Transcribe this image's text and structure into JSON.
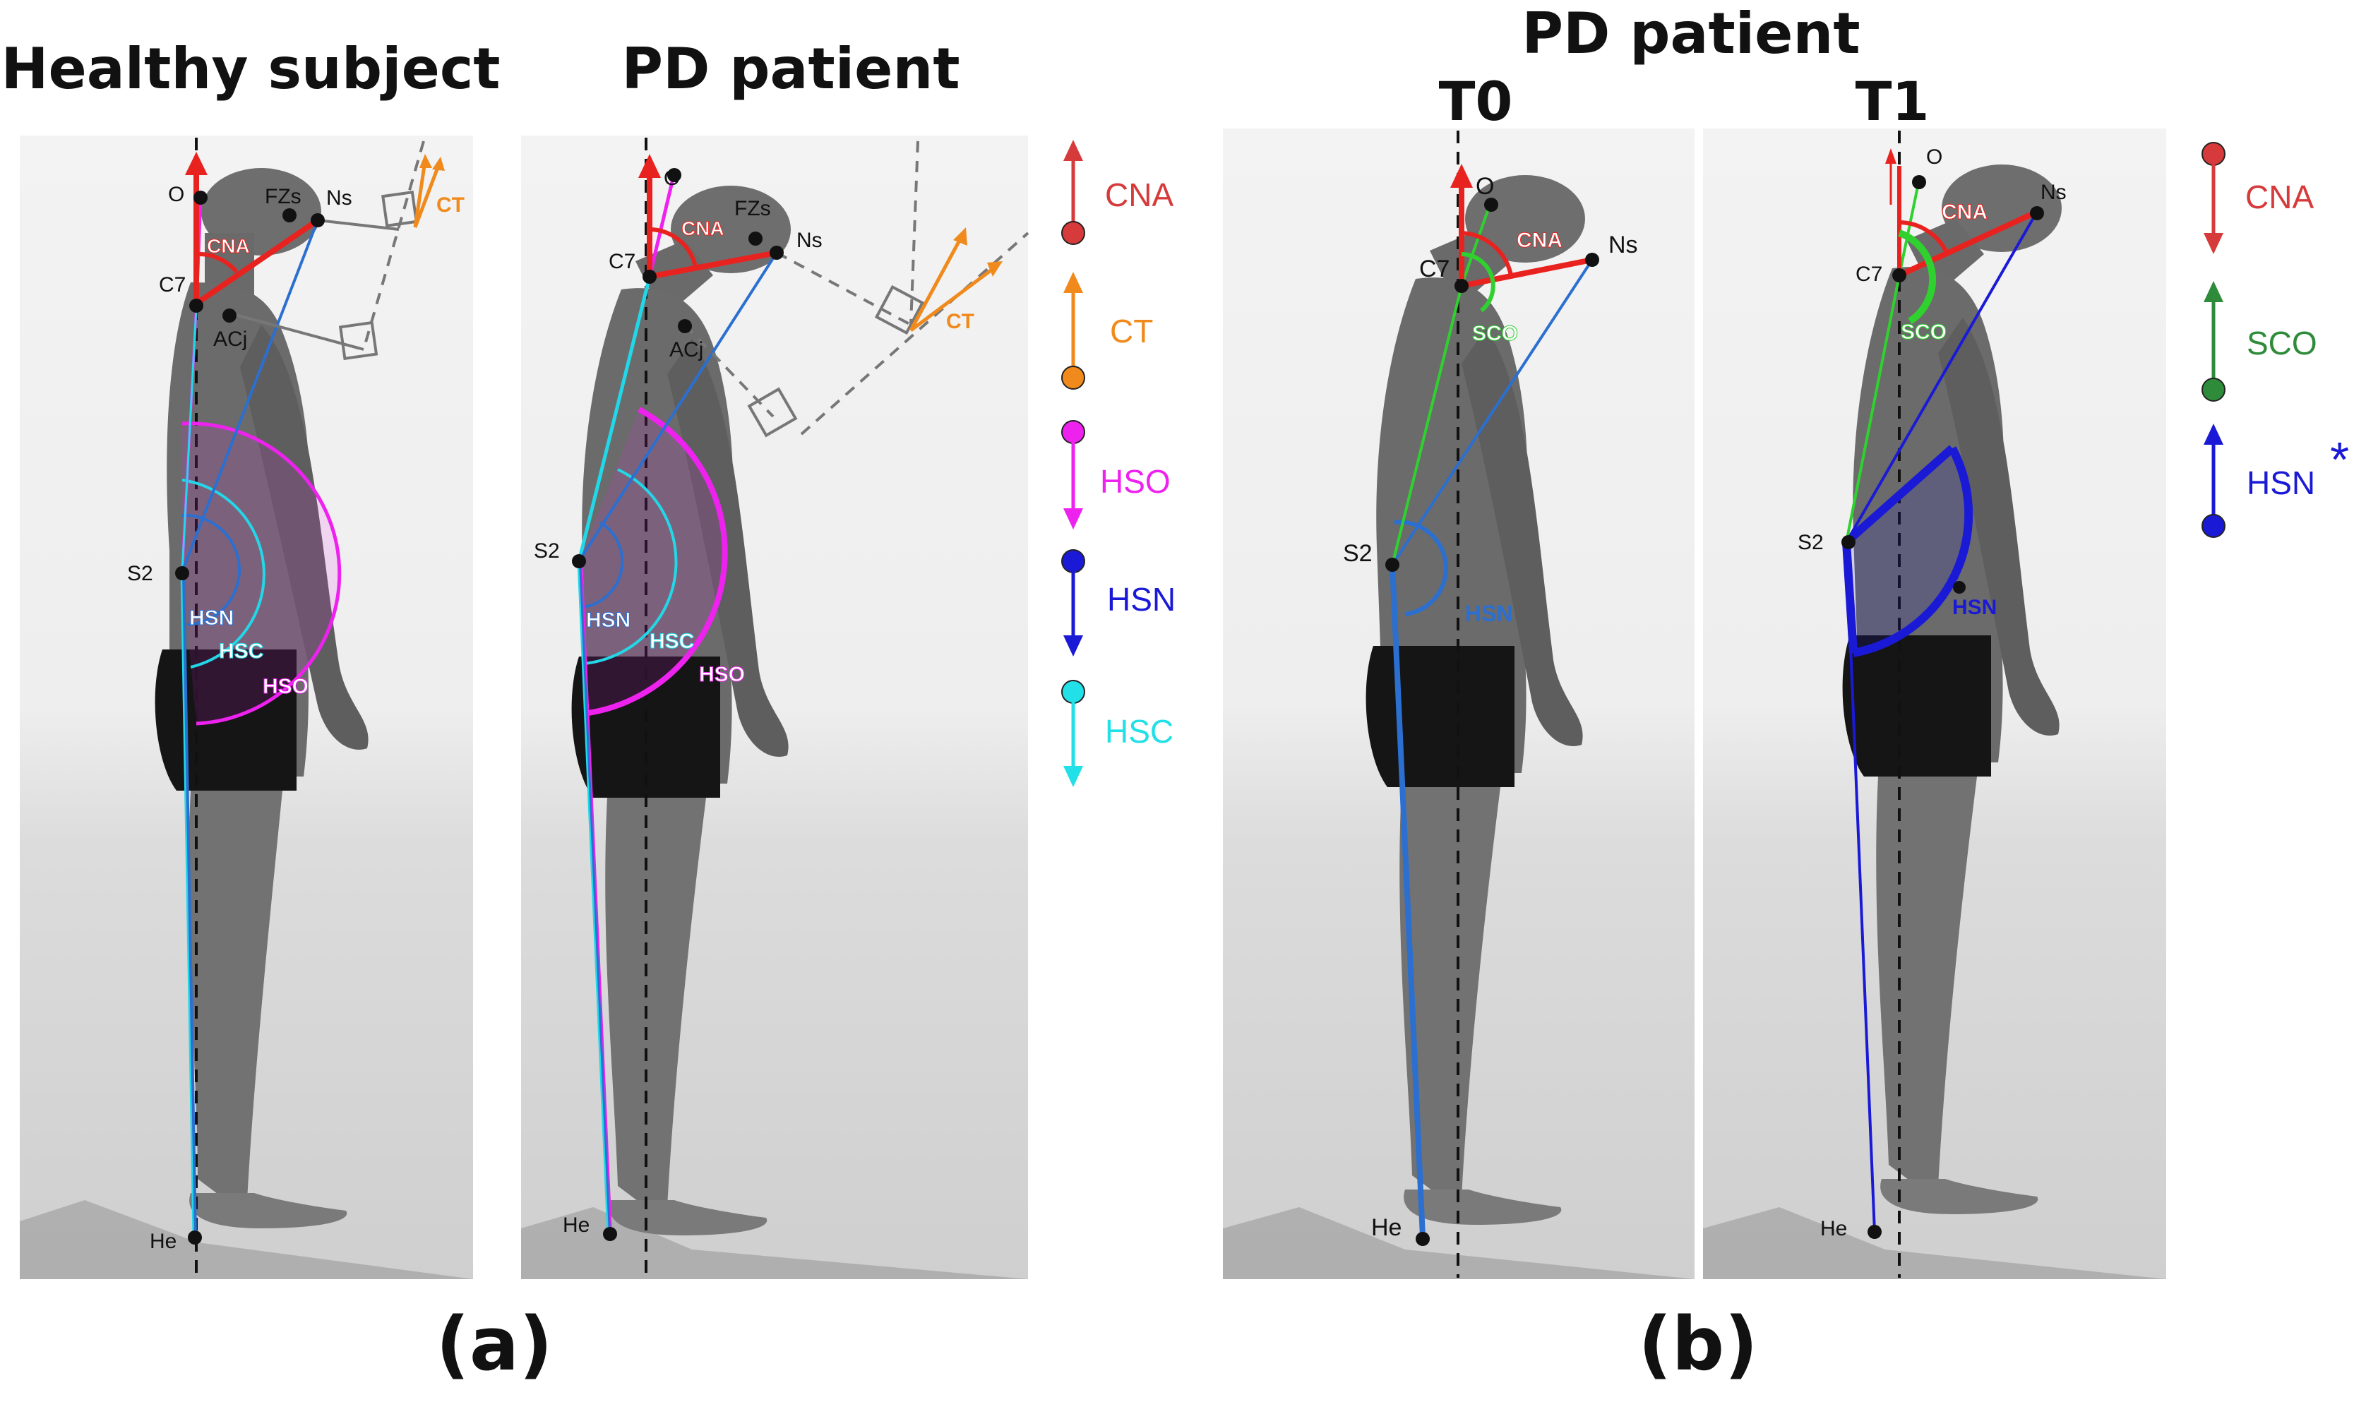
{
  "titles": {
    "healthy": "Healthy subject",
    "pd_a": "PD patient",
    "pd_b": "PD patient",
    "t0": "T0",
    "t1": "T1"
  },
  "captions": {
    "a": "(a)",
    "b": "(b)"
  },
  "points": {
    "O": "O",
    "FZs": "FZs",
    "Ns": "Ns",
    "C7": "C7",
    "ACj": "ACj",
    "S2": "S2",
    "He": "He"
  },
  "angles": {
    "CNA": "CNA",
    "CT": "CT",
    "HSO": "HSO",
    "HSN": "HSN",
    "HSC": "HSC",
    "SCO": "SCO"
  },
  "legend_a": [
    {
      "label": "CNA",
      "direction": "up",
      "color": "#d63a3a"
    },
    {
      "label": "CT",
      "direction": "up",
      "color": "#f08a1c"
    },
    {
      "label": "HSO",
      "direction": "down",
      "color": "#ee22ee"
    },
    {
      "label": "HSN",
      "direction": "down",
      "color": "#1a1ad6"
    },
    {
      "label": "HSC",
      "direction": "down",
      "color": "#22e0e8"
    }
  ],
  "legend_b": [
    {
      "label": "CNA",
      "direction": "down",
      "color": "#d63a3a"
    },
    {
      "label": "SCO",
      "direction": "up",
      "color": "#2e8b3a"
    },
    {
      "label": "HSN",
      "direction": "up",
      "color": "#1a1ad6",
      "mark": "*"
    }
  ],
  "colors": {
    "cna": "#e8231f",
    "ct": "#f08a1c",
    "hso": "#ee22ee",
    "hsn": "#2b6fd0",
    "hsn_strong": "#1a1ad6",
    "hsc": "#22d8e8",
    "sco": "#2fd12f",
    "panel": "#d9d9d9"
  }
}
